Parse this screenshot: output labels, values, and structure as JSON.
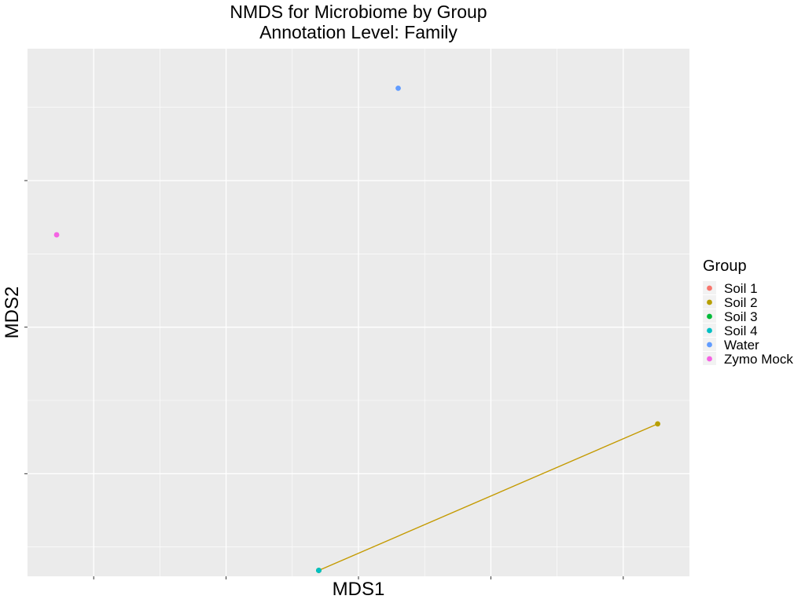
{
  "chart_data": {
    "type": "scatter",
    "title": "NMDS for Microbiome by Group",
    "subtitle": "Annotation Level: Family",
    "xlabel": "MDS1",
    "ylabel": "MDS2",
    "xlim": [
      -5,
      20
    ],
    "ylim": [
      -7,
      29
    ],
    "x_major_ticks": [
      -2.5,
      2.5,
      7.5,
      12.5,
      17.5
    ],
    "y_major_ticks": [
      0,
      10,
      20
    ],
    "x_tick_labels_shown": false,
    "y_tick_labels_shown": false,
    "grid": true,
    "legend_position": "right",
    "legend_title": "Group",
    "series": [
      {
        "name": "Soil 1",
        "color": "#F8766D",
        "points": []
      },
      {
        "name": "Soil 2",
        "color": "#B79F00",
        "points": [
          [
            6.0,
            -6.6
          ],
          [
            18.8,
            3.4
          ]
        ],
        "connected": true,
        "line_color": "#C49A00"
      },
      {
        "name": "Soil 3",
        "color": "#00BA38",
        "points": [
          [
            6.0,
            -6.6
          ]
        ]
      },
      {
        "name": "Soil 4",
        "color": "#00BFC4",
        "points": [
          [
            6.0,
            -6.6
          ]
        ]
      },
      {
        "name": "Water",
        "color": "#619CFF",
        "points": [
          [
            9.0,
            26.3
          ]
        ]
      },
      {
        "name": "Zymo Mock",
        "color": "#F564E3",
        "points": [
          [
            -3.9,
            16.3
          ]
        ]
      }
    ]
  }
}
